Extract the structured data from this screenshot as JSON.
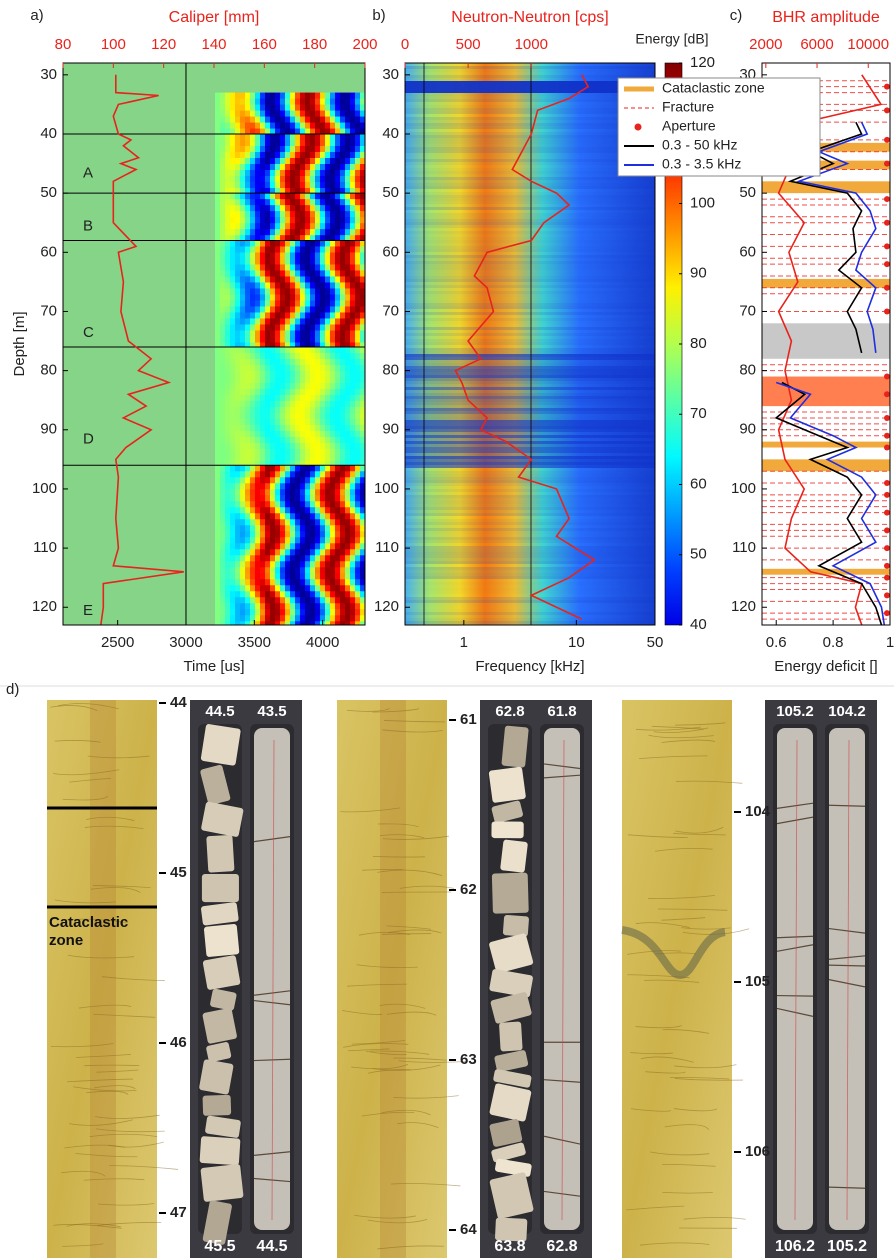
{
  "chart_data": [
    {
      "type": "line",
      "panel": "a)",
      "x2_label": "Caliper [mm]",
      "x_label": "Time [us]",
      "y_label": "Depth [m]",
      "ylim": [
        28,
        123
      ],
      "yticks": [
        30,
        40,
        50,
        60,
        70,
        80,
        90,
        100,
        110,
        120
      ],
      "xlim": [
        2100,
        4310
      ],
      "xticks": [
        2500,
        3000,
        3500,
        4000
      ],
      "x2lim": [
        80,
        200
      ],
      "x2ticks": [
        80,
        100,
        120,
        140,
        160,
        180,
        200
      ],
      "section_boundaries": [
        40,
        50,
        58,
        76,
        96
      ],
      "sections": {
        "labels": [
          "A",
          "B",
          "C",
          "D",
          "E"
        ],
        "depths": [
          48,
          57,
          75,
          93,
          122
        ]
      },
      "series": [
        {
          "color": "#e8231c",
          "axis": "x2",
          "depth": [
            30,
            33,
            33.5,
            35,
            37,
            40,
            41,
            42,
            44,
            45,
            46,
            48,
            50,
            55,
            59,
            60,
            65,
            70,
            75,
            78,
            80,
            82,
            84,
            86,
            88,
            90,
            93,
            95,
            98,
            105,
            110,
            113,
            114,
            116,
            120,
            123
          ],
          "values": [
            101,
            101,
            118,
            102,
            100,
            102,
            107,
            104,
            110,
            103,
            109,
            100,
            100,
            100,
            109,
            102,
            104,
            103,
            106,
            115,
            110,
            122,
            106,
            113,
            104,
            115,
            105,
            101,
            102,
            101,
            102,
            100,
            128,
            96,
            96,
            95
          ]
        }
      ]
    },
    {
      "type": "line",
      "panel": "b)",
      "x2_label": "Neutron-Neutron [cps]",
      "x_label": "Frequency [kHz]",
      "xscale": "log",
      "ylim": [
        28,
        123
      ],
      "yticks": [
        30,
        40,
        50,
        60,
        70,
        80,
        90,
        100,
        110,
        120
      ],
      "xlim": [
        0.3,
        50
      ],
      "xticks": [
        1,
        10,
        50
      ],
      "x2lim": [
        0,
        1980
      ],
      "x2ticks": [
        0,
        500,
        1000
      ],
      "colorbar": {
        "label": "Energy [dB]",
        "lim": [
          40,
          120
        ],
        "ticks": [
          40,
          50,
          60,
          70,
          80,
          90,
          100,
          110,
          120
        ]
      },
      "series": [
        {
          "color": "#e8231c",
          "axis": "x2",
          "depth": [
            30,
            32,
            34,
            36,
            40,
            44,
            46,
            48,
            50,
            52,
            55,
            58,
            60,
            64,
            66,
            70,
            75,
            78,
            80,
            82,
            85,
            88,
            90,
            92,
            95,
            98,
            100,
            105,
            108,
            112,
            115,
            118,
            122
          ],
          "values": [
            1400,
            1450,
            1300,
            1050,
            1000,
            900,
            850,
            1000,
            1200,
            1300,
            1100,
            1000,
            650,
            550,
            650,
            700,
            500,
            600,
            400,
            450,
            500,
            650,
            600,
            800,
            1000,
            900,
            1200,
            1300,
            1200,
            1500,
            1300,
            1000,
            1400
          ]
        }
      ]
    },
    {
      "type": "line",
      "panel": "c)",
      "x2_label": "BHR amplitude",
      "x_label": "Energy deficit []",
      "ylim": [
        28,
        123
      ],
      "yticks": [
        30,
        40,
        50,
        60,
        70,
        80,
        90,
        100,
        110,
        120
      ],
      "xlim": [
        0.55,
        1.0
      ],
      "xticks": [
        0.6,
        0.8,
        1
      ],
      "x2lim": [
        1700,
        11700
      ],
      "x2ticks": [
        2000,
        6000,
        10000
      ],
      "zones": [
        {
          "name": "Cataclastic zone",
          "color": "#f2a93b",
          "intervals": [
            [
              41.5,
              43
            ],
            [
              44.5,
              46
            ],
            [
              48,
              50
            ],
            [
              64.5,
              66
            ],
            [
              92,
              93
            ],
            [
              95,
              97
            ],
            [
              113.5,
              114.5
            ]
          ]
        },
        {
          "color": "#c8c8c8",
          "intervals": [
            [
              72,
              78
            ]
          ]
        },
        {
          "color": "#ff7f50",
          "intervals": [
            [
              81,
              86
            ]
          ]
        }
      ],
      "fractures": {
        "name": "Fracture",
        "color": "#e8231c",
        "depths": [
          31,
          32,
          33,
          35,
          36,
          38,
          41,
          43,
          46,
          51,
          52,
          54,
          55,
          57,
          59,
          61,
          62,
          64,
          66,
          67,
          70,
          79,
          80,
          87,
          88,
          89,
          90,
          91,
          97,
          99,
          101,
          102,
          103,
          104,
          106,
          107,
          108,
          110,
          112,
          115,
          116,
          117,
          119,
          121,
          122
        ]
      },
      "apertures": {
        "name": "Aperture",
        "color": "#e8231c",
        "depths": [
          32,
          36,
          41,
          45,
          51,
          55,
          59,
          62,
          66,
          70,
          81,
          84,
          88,
          91,
          93,
          99,
          101,
          104,
          107,
          110,
          113,
          115,
          118,
          121
        ]
      },
      "series": [
        {
          "color": "#e8231c",
          "axis": "x2",
          "depth": [
            30,
            35,
            38,
            40,
            45,
            50,
            55,
            60,
            65,
            70,
            75,
            80,
            85,
            90,
            95,
            100,
            105,
            110,
            114,
            116,
            120,
            123
          ],
          "values": [
            9500,
            11000,
            5000,
            3500,
            4000,
            3000,
            5000,
            3800,
            4500,
            3000,
            4000,
            3500,
            4000,
            3000,
            3500,
            5000,
            4000,
            3500,
            5500,
            9500,
            9000,
            9500
          ]
        },
        {
          "name": "0.3 - 50 kHz",
          "color": "#000000",
          "depth": [
            38,
            40,
            43,
            45,
            48,
            50,
            53,
            56,
            60,
            63,
            66,
            70,
            73,
            77,
            78,
            82,
            84,
            88,
            91,
            93,
            95,
            98,
            101,
            105,
            109,
            113,
            116,
            120,
            123
          ],
          "values": [
            0.88,
            0.9,
            0.72,
            0.8,
            0.65,
            0.85,
            0.9,
            0.87,
            0.88,
            0.82,
            0.9,
            0.85,
            0.88,
            0.9,
            null,
            0.62,
            0.7,
            0.6,
            0.75,
            0.85,
            0.72,
            0.85,
            0.9,
            0.85,
            0.9,
            0.75,
            0.9,
            0.95,
            0.97
          ]
        },
        {
          "name": "0.3 - 3.5 kHz",
          "color": "#1f2fe0",
          "depth": [
            38,
            40,
            43,
            45,
            48,
            50,
            53,
            56,
            60,
            63,
            66,
            70,
            73,
            77,
            78,
            82,
            84,
            88,
            91,
            93,
            95,
            98,
            101,
            105,
            109,
            113,
            116,
            120,
            123
          ],
          "values": [
            0.9,
            0.92,
            0.75,
            0.85,
            0.68,
            0.88,
            0.93,
            0.95,
            0.9,
            0.88,
            0.95,
            0.92,
            0.94,
            0.95,
            null,
            0.6,
            0.72,
            0.65,
            0.8,
            0.88,
            0.78,
            0.9,
            0.95,
            0.9,
            0.95,
            0.8,
            0.93,
            0.97,
            0.98
          ]
        }
      ]
    }
  ],
  "core_figure": {
    "panel": "d)",
    "annotation": "Cataclastic zone",
    "groups": [
      {
        "depth_ticks": [
          44,
          45,
          46,
          47
        ],
        "top_labels": [
          44.5,
          43.5
        ],
        "bottom_labels": [
          45.5,
          44.5
        ]
      },
      {
        "depth_ticks": [
          61,
          62,
          63,
          64
        ],
        "top_labels": [
          62.8,
          61.8
        ],
        "bottom_labels": [
          63.8,
          62.8
        ]
      },
      {
        "depth_ticks": [
          104,
          105,
          106
        ],
        "top_labels": [
          105.2,
          104.2
        ],
        "bottom_labels": [
          106.2,
          105.2
        ]
      }
    ]
  }
}
